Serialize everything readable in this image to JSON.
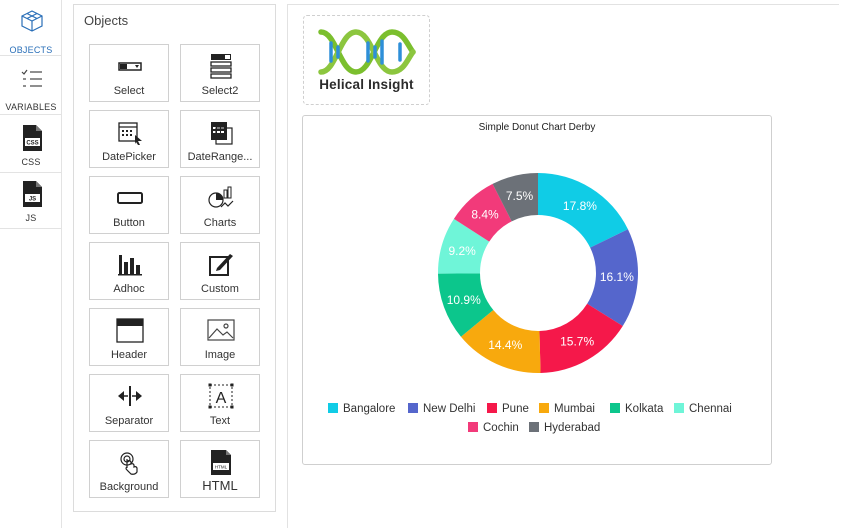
{
  "rail": {
    "items": [
      {
        "label": "OBJECTS",
        "icon": "objects-cubes-icon",
        "active": true
      },
      {
        "label": "VARIABLES",
        "icon": "variables-list-icon",
        "active": false
      },
      {
        "label": "CSS",
        "icon": "css-file-icon",
        "active": false
      },
      {
        "label": "JS",
        "icon": "js-file-icon",
        "active": false
      }
    ]
  },
  "objects": {
    "title": "Objects",
    "tiles": [
      {
        "label": "Select",
        "icon": "select-icon"
      },
      {
        "label": "Select2",
        "icon": "select2-icon"
      },
      {
        "label": "DatePicker",
        "icon": "datepicker-icon"
      },
      {
        "label": "DateRange...",
        "icon": "daterange-icon"
      },
      {
        "label": "Button",
        "icon": "button-icon"
      },
      {
        "label": "Charts",
        "icon": "charts-icon"
      },
      {
        "label": "Adhoc",
        "icon": "adhoc-icon"
      },
      {
        "label": "Custom",
        "icon": "custom-icon"
      },
      {
        "label": "Header",
        "icon": "header-icon"
      },
      {
        "label": "Image",
        "icon": "image-icon"
      },
      {
        "label": "Separator",
        "icon": "separator-icon"
      },
      {
        "label": "Text",
        "icon": "text-icon"
      },
      {
        "label": "Background",
        "icon": "background-icon"
      },
      {
        "label": "HTML",
        "icon": "html-icon"
      }
    ]
  },
  "logo": {
    "text": "Helical Insight"
  },
  "chart_data": {
    "type": "pie",
    "donut": true,
    "title": "Simple Donut Chart Derby",
    "categories": [
      "Bangalore",
      "New Delhi",
      "Pune",
      "Mumbai",
      "Kolkata",
      "Chennai",
      "Cochin",
      "Hyderabad"
    ],
    "values": [
      17.8,
      16.1,
      15.7,
      14.4,
      10.9,
      9.2,
      8.4,
      7.5
    ],
    "labels": [
      "17.8%",
      "16.1%",
      "15.7%",
      "14.4%",
      "10.9%",
      "9.2%",
      "8.4%",
      "7.5%"
    ],
    "colors": [
      "#10cce6",
      "#5566cc",
      "#f5184a",
      "#f8a90d",
      "#0cc68c",
      "#6ff5d8",
      "#f23a7a",
      "#6c7178"
    ],
    "legend_position": "bottom"
  }
}
